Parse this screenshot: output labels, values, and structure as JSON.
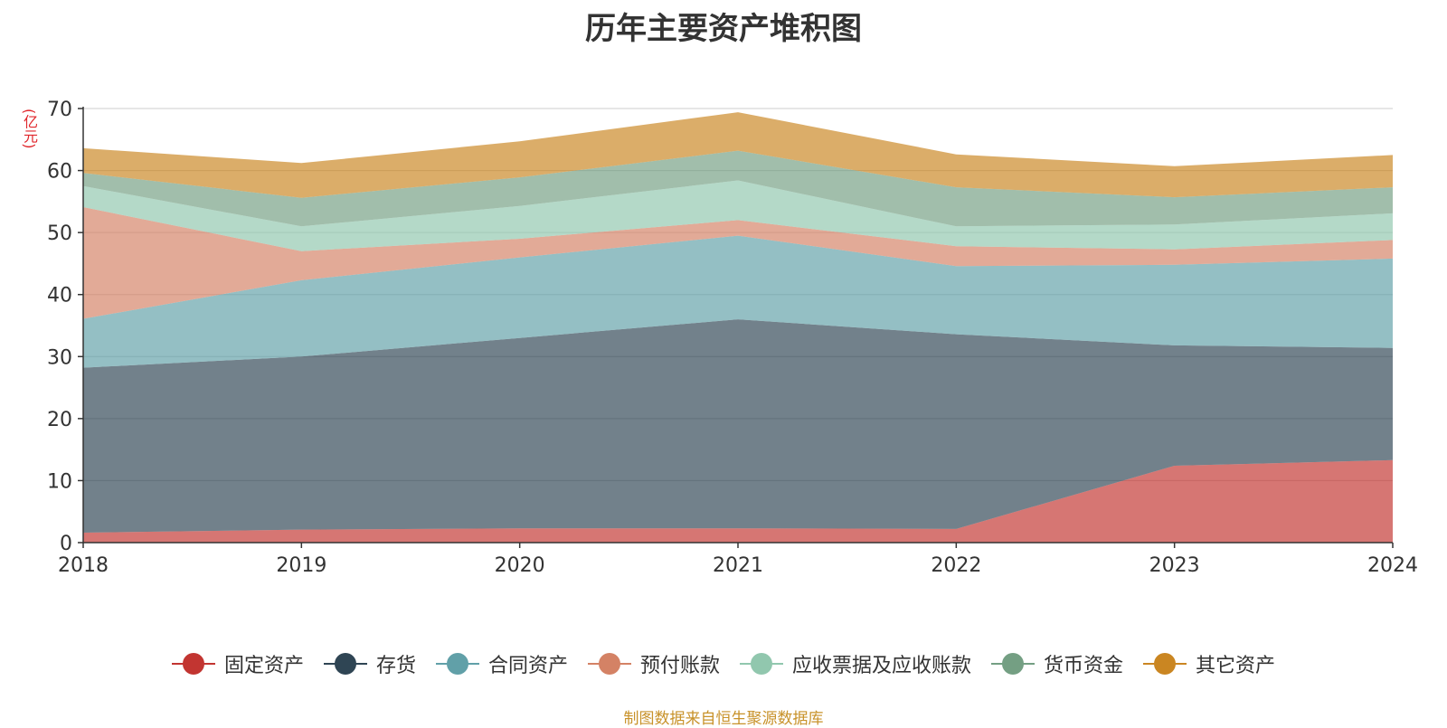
{
  "chart_data": {
    "type": "area",
    "stacked": true,
    "title": "历年主要资产堆积图",
    "unit_label": "(亿元)",
    "source": "制图数据来自恒生聚源数据库",
    "x": [
      "2018",
      "2019",
      "2020",
      "2021",
      "2022",
      "2023",
      "2024"
    ],
    "ylim": [
      0,
      70
    ],
    "yticks": [
      0,
      10,
      20,
      30,
      40,
      50,
      60,
      70
    ],
    "grid": true,
    "legend_position": "bottom",
    "series": [
      {
        "name": "固定资产",
        "color": "#c23531",
        "values": [
          1.6,
          2.1,
          2.3,
          2.3,
          2.2,
          12.4,
          13.3
        ]
      },
      {
        "name": "存货",
        "color": "#2f4554",
        "values": [
          26.6,
          27.9,
          30.7,
          33.7,
          31.4,
          19.4,
          18.1
        ]
      },
      {
        "name": "合同资产",
        "color": "#61a0a8",
        "values": [
          7.9,
          12.3,
          13.0,
          13.5,
          11.0,
          13.0,
          14.4
        ]
      },
      {
        "name": "预付账款",
        "color": "#d48265",
        "values": [
          18.0,
          4.7,
          3.0,
          2.5,
          3.2,
          2.5,
          3.0
        ]
      },
      {
        "name": "应收票据及应收账款",
        "color": "#91c7ae",
        "values": [
          3.4,
          4.0,
          5.3,
          6.4,
          3.2,
          4.0,
          4.3
        ]
      },
      {
        "name": "货币资金",
        "color": "#749f83",
        "values": [
          2.1,
          4.6,
          4.6,
          4.8,
          6.3,
          4.4,
          4.2
        ]
      },
      {
        "name": "其它资产",
        "color": "#ca8622",
        "values": [
          4.0,
          5.6,
          5.8,
          6.2,
          5.3,
          5.0,
          5.2
        ]
      }
    ]
  }
}
